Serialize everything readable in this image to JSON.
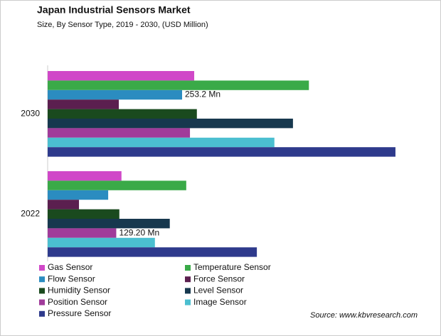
{
  "chart_data": {
    "type": "bar",
    "orientation": "horizontal",
    "title": "Japan Industrial Sensors Market",
    "subtitle": "Size, By Sensor Type, 2019 - 2030, (USD Million)",
    "source": "Source: www.kbvresearch.com",
    "categories": [
      "2030",
      "2022"
    ],
    "series": [
      {
        "name": "Gas Sensor",
        "color": "#d048c8",
        "values": [
          276,
          139
        ]
      },
      {
        "name": "Temperature Sensor",
        "color": "#3aaa48",
        "values": [
          492,
          261
        ]
      },
      {
        "name": "Flow Sensor",
        "color": "#2b8cc0",
        "values": [
          253.2,
          114
        ],
        "value_labels": [
          "253.2 Mn",
          null
        ]
      },
      {
        "name": "Force Sensor",
        "color": "#5b1f4f",
        "values": [
          134,
          59
        ]
      },
      {
        "name": "Humidity Sensor",
        "color": "#1a4a1e",
        "values": [
          281,
          135
        ]
      },
      {
        "name": "Level Sensor",
        "color": "#17384e",
        "values": [
          462,
          230
        ]
      },
      {
        "name": "Position Sensor",
        "color": "#a03b9a",
        "values": [
          268,
          129.2
        ],
        "value_labels": [
          null,
          "129.20 Mn"
        ]
      },
      {
        "name": "Image Sensor",
        "color": "#4bbfd0",
        "values": [
          427,
          202
        ]
      },
      {
        "name": "Pressure Sensor",
        "color": "#2e3a8c",
        "values": [
          655,
          394
        ]
      }
    ]
  }
}
